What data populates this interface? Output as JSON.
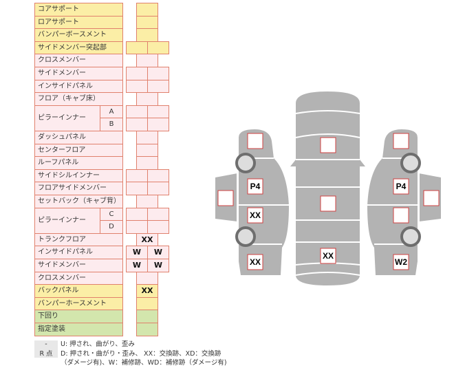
{
  "colors": {
    "yellow": "#fbeea6",
    "pink": "#fdebee",
    "green": "#d3e6ad",
    "border": "#e0806c",
    "car": "#b3b3b3"
  },
  "table": {
    "rows": [
      {
        "label": "コアサポート",
        "color": "yellow",
        "type": "single",
        "values": [
          ""
        ]
      },
      {
        "label": "ロアサポート",
        "color": "yellow",
        "type": "single",
        "values": [
          ""
        ]
      },
      {
        "label": "バンパーボースメント",
        "color": "yellow",
        "type": "single",
        "values": [
          ""
        ]
      },
      {
        "label": "サイドメンバー突起部",
        "color": "yellow",
        "type": "double",
        "values": [
          "",
          ""
        ]
      },
      {
        "label": "クロスメンバー",
        "color": "pink",
        "type": "single",
        "values": [
          ""
        ]
      },
      {
        "label": "サイドメンバー",
        "color": "pink",
        "type": "double",
        "values": [
          "",
          ""
        ]
      },
      {
        "label": "インサイドパネル",
        "color": "pink",
        "type": "double",
        "values": [
          "",
          ""
        ]
      },
      {
        "label": "フロア（キャブ床）",
        "color": "pink",
        "type": "single",
        "values": [
          ""
        ]
      },
      {
        "label": "ピラーインナー",
        "sub": "A",
        "group": "start",
        "color": "pink",
        "type": "double",
        "values": [
          "",
          ""
        ]
      },
      {
        "label": "",
        "sub": "B",
        "group": "end",
        "color": "pink",
        "type": "double",
        "values": [
          "",
          ""
        ]
      },
      {
        "label": "ダッシュパネル",
        "color": "pink",
        "type": "single",
        "values": [
          ""
        ]
      },
      {
        "label": "センターフロア",
        "color": "pink",
        "type": "single",
        "values": [
          ""
        ]
      },
      {
        "label": "ルーフパネル",
        "color": "pink",
        "type": "single",
        "values": [
          ""
        ]
      },
      {
        "label": "サイドシルインナー",
        "color": "pink",
        "type": "double",
        "values": [
          "",
          ""
        ]
      },
      {
        "label": "フロアサイドメンバー",
        "color": "pink",
        "type": "double",
        "values": [
          "",
          ""
        ]
      },
      {
        "label": "セットバック（キャブ背）",
        "color": "pink",
        "type": "single",
        "values": [
          ""
        ]
      },
      {
        "label": "ピラーインナー",
        "sub": "C",
        "group": "start",
        "color": "pink",
        "type": "double",
        "values": [
          "",
          ""
        ]
      },
      {
        "label": "",
        "sub": "D",
        "group": "end",
        "color": "pink",
        "type": "double",
        "values": [
          "",
          ""
        ]
      },
      {
        "label": "トランクフロア",
        "color": "pink",
        "type": "single",
        "values": [
          "XX"
        ]
      },
      {
        "label": "インサイドパネル",
        "color": "pink",
        "type": "double",
        "values": [
          "W",
          "W"
        ]
      },
      {
        "label": "サイドメンバー",
        "color": "pink",
        "type": "double",
        "values": [
          "W",
          "W"
        ]
      },
      {
        "label": "クロスメンバー",
        "color": "pink",
        "type": "single",
        "values": [
          ""
        ]
      },
      {
        "label": "バックパネル",
        "color": "yellow",
        "type": "single",
        "values": [
          "XX"
        ]
      },
      {
        "label": "バンパーホースメント",
        "color": "yellow",
        "type": "single",
        "values": [
          ""
        ]
      },
      {
        "label": "下回り",
        "color": "green",
        "type": "single",
        "values": [
          ""
        ]
      },
      {
        "label": "指定塗装",
        "color": "green",
        "type": "single",
        "values": [
          ""
        ]
      }
    ]
  },
  "legend": {
    "row1_key": "-",
    "row1_text": "U: 押され、曲がり、歪み",
    "row2_key": "R 点",
    "row2_text": "D: 押され・曲がり・歪み、 XX：交換跡、XD：交換跡",
    "row3_text": "（ダメージ有)、W：補修跡、WD：補修跡（ダメージ有)"
  },
  "diagram": {
    "left": {
      "front": "",
      "door_front": "P4",
      "door_rear": "XX",
      "rear": "XX",
      "side_panel": ""
    },
    "center": {
      "hood": "",
      "roof": "",
      "trunk": "XX"
    },
    "right": {
      "front": "",
      "door_front": "P4",
      "door_rear": "",
      "rear": "W2",
      "side_panel": ""
    }
  }
}
